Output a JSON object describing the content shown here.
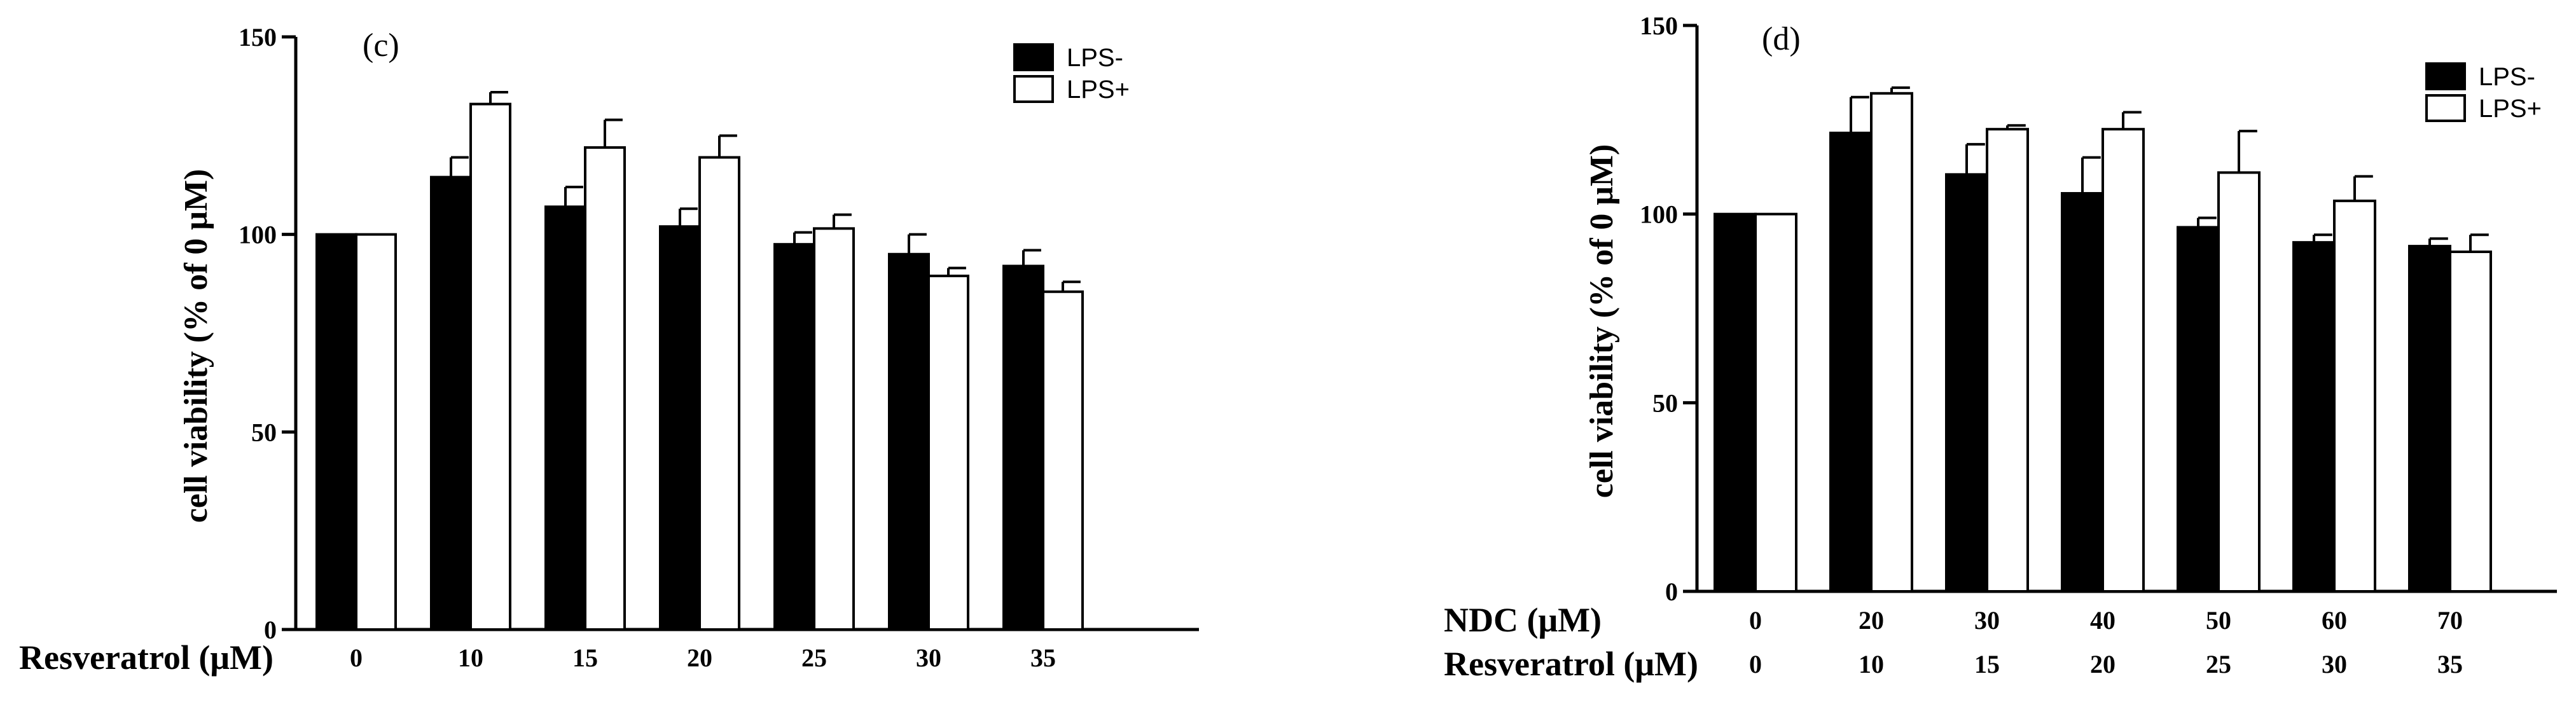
{
  "chart_data": [
    {
      "type": "bar",
      "panel_label": "(c)",
      "ylabel": "cell viability (% of 0 μM)",
      "ylim": [
        0,
        150
      ],
      "yticks": [
        0,
        50,
        100,
        150
      ],
      "category_rows": [
        {
          "label": "Resveratrol (μM)",
          "values": [
            "0",
            "10",
            "15",
            "20",
            "25",
            "30",
            "35"
          ]
        }
      ],
      "series": [
        {
          "name": "LPS-",
          "color": "#000000",
          "values": [
            100,
            114.5,
            107,
            102,
            97.5,
            95,
            92
          ],
          "errors": [
            0,
            5,
            5,
            4.5,
            3,
            5,
            4
          ]
        },
        {
          "name": "LPS+",
          "color": "#ffffff",
          "values": [
            100,
            133,
            122,
            119.5,
            101.5,
            89.5,
            85.5
          ],
          "errors": [
            0,
            3,
            7,
            5.5,
            3.5,
            2,
            2.5
          ]
        }
      ],
      "legend_position": "top-right"
    },
    {
      "type": "bar",
      "panel_label": "(d)",
      "ylabel": "cell viability (% of 0 μM)",
      "ylim": [
        0,
        150
      ],
      "yticks": [
        0,
        50,
        100,
        150
      ],
      "category_rows": [
        {
          "label": "NDC (μM)",
          "values": [
            "0",
            "20",
            "30",
            "40",
            "50",
            "60",
            "70"
          ]
        },
        {
          "label": "Resveratrol (μM)",
          "values": [
            "0",
            "10",
            "15",
            "20",
            "25",
            "30",
            "35"
          ]
        }
      ],
      "series": [
        {
          "name": "LPS-",
          "color": "#000000",
          "values": [
            100,
            121.5,
            110.5,
            105.5,
            96.5,
            92.5,
            91.5
          ],
          "errors": [
            0,
            9.5,
            8,
            9.5,
            2.5,
            2,
            2
          ]
        },
        {
          "name": "LPS+",
          "color": "#ffffff",
          "values": [
            100,
            132,
            122.5,
            122.5,
            111,
            103.5,
            90
          ],
          "errors": [
            0,
            1.5,
            1,
            4.5,
            11,
            6.5,
            4.5
          ]
        }
      ],
      "legend_position": "top-right"
    }
  ]
}
